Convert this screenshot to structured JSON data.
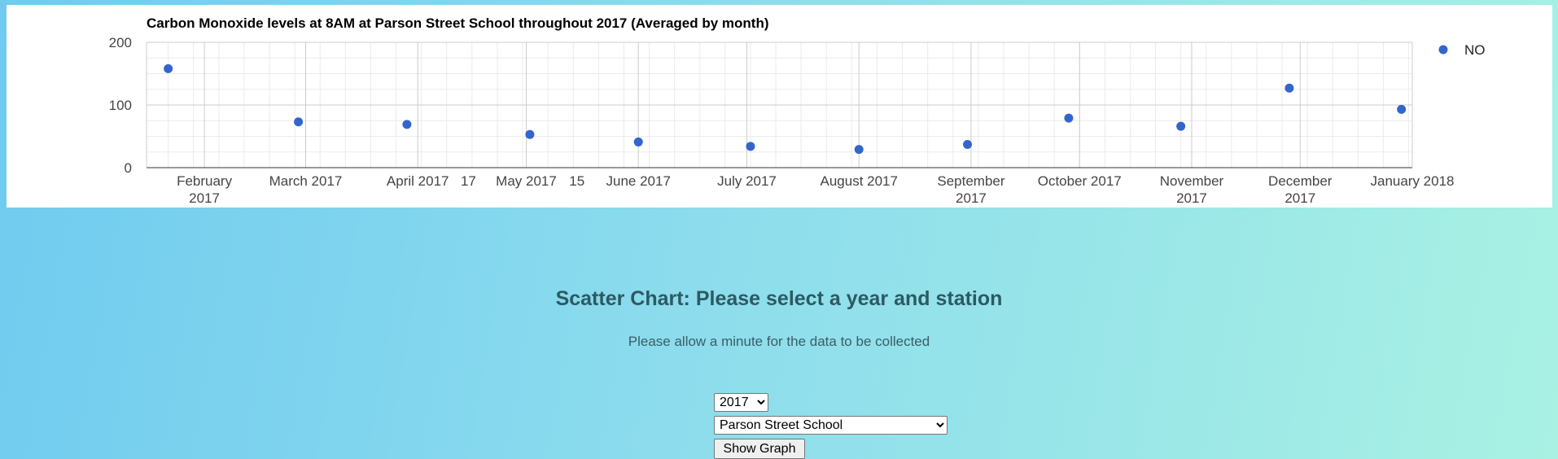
{
  "chart_data": {
    "type": "scatter",
    "title": "Carbon Monoxide levels at 8AM at Parson Street School throughout 2017 (Averaged by month)",
    "x_tick_labels": [
      [
        "February",
        "2017"
      ],
      [
        "March 2017"
      ],
      [
        "April 2017"
      ],
      [
        "May 2017"
      ],
      [
        "June 2017"
      ],
      [
        "July 2017"
      ],
      [
        "August 2017"
      ],
      [
        "September",
        "2017"
      ],
      [
        "October 2017"
      ],
      [
        "November",
        "2017"
      ],
      [
        "December",
        "2017"
      ],
      [
        "January 2018"
      ]
    ],
    "x_tick_dates": [
      "2017-02-01",
      "2017-03-01",
      "2017-04-01",
      "2017-05-01",
      "2017-06-01",
      "2017-07-01",
      "2017-08-01",
      "2017-09-01",
      "2017-10-01",
      "2017-11-01",
      "2017-12-01",
      "2018-01-01"
    ],
    "extra_tick_labels": [
      "17",
      "15"
    ],
    "y_ticks": [
      0,
      100,
      200
    ],
    "ylim": [
      0,
      200
    ],
    "xlim": [
      "2017-01-16",
      "2018-01-01"
    ],
    "grid": true,
    "legend_position": "right",
    "series": [
      {
        "name": "NO",
        "color": "#3366cc",
        "points": [
          {
            "x": "2017-01-22",
            "y": 158
          },
          {
            "x": "2017-02-27",
            "y": 73
          },
          {
            "x": "2017-03-29",
            "y": 69
          },
          {
            "x": "2017-05-02",
            "y": 53
          },
          {
            "x": "2017-06-01",
            "y": 41
          },
          {
            "x": "2017-07-02",
            "y": 34
          },
          {
            "x": "2017-08-01",
            "y": 29
          },
          {
            "x": "2017-08-31",
            "y": 37
          },
          {
            "x": "2017-09-28",
            "y": 79
          },
          {
            "x": "2017-10-29",
            "y": 66
          },
          {
            "x": "2017-11-28",
            "y": 127
          },
          {
            "x": "2017-12-29",
            "y": 93
          }
        ]
      }
    ]
  },
  "scatter_section": {
    "heading": "Scatter Chart: Please select a year and station",
    "note": "Please allow a minute for the data to be collected",
    "year_options": [
      "2017"
    ],
    "year_selected": "2017",
    "station_options": [
      "Parson Street School"
    ],
    "station_selected": "Parson Street School",
    "show_graph_label": "Show Graph"
  }
}
